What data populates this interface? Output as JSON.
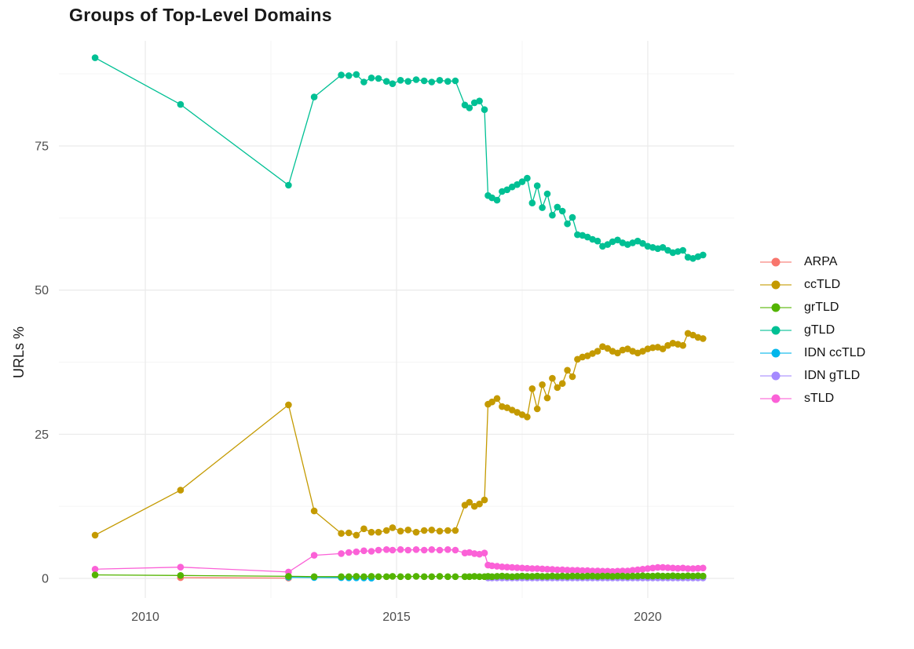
{
  "chart_data": {
    "type": "line",
    "title": "Groups of Top-Level Domains",
    "xlabel": "",
    "ylabel": "URLs %",
    "x_ticks": [
      "2010",
      "2015",
      "2020"
    ],
    "x_tick_years": [
      2010,
      2015,
      2020
    ],
    "x_minor_years": [
      2012.5,
      2017.5
    ],
    "y_ticks": [
      "0",
      "25",
      "50",
      "75"
    ],
    "y_tick_values": [
      0,
      25,
      50,
      75
    ],
    "y_minor_values": [
      12.5,
      37.5,
      62.5,
      87.5
    ],
    "xlim": [
      2008.28,
      2021.72
    ],
    "ylim": [
      -3.4,
      93.24
    ],
    "grid": true,
    "legend_position": "right",
    "grid_major_color": "#EBEBEB",
    "grid_minor_color": "#F5F5F5",
    "axis_text_color": "#4d4d4d",
    "draw_order": [
      0,
      4,
      5,
      6,
      1,
      3,
      2
    ],
    "series": [
      {
        "name": "ARPA",
        "color": "#F8766D",
        "x": [
          2010.7,
          2012.85
        ],
        "y": [
          0.12,
          0.06
        ]
      },
      {
        "name": "ccTLD",
        "color": "#C49A00",
        "x": [
          2009.0,
          2010.7,
          2012.85,
          2013.36,
          2013.9,
          2014.05,
          2014.2,
          2014.35,
          2014.5,
          2014.64,
          2014.8,
          2014.92,
          2015.08,
          2015.23,
          2015.39,
          2015.55,
          2015.7,
          2015.86,
          2016.02,
          2016.17,
          2016.36,
          2016.45,
          2016.55,
          2016.65,
          2016.75,
          2016.82,
          2016.9,
          2017.0,
          2017.1,
          2017.2,
          2017.3,
          2017.4,
          2017.5,
          2017.6,
          2017.7,
          2017.8,
          2017.9,
          2018.0,
          2018.1,
          2018.2,
          2018.3,
          2018.4,
          2018.5,
          2018.6,
          2018.7,
          2018.8,
          2018.9,
          2019.0,
          2019.1,
          2019.2,
          2019.3,
          2019.4,
          2019.5,
          2019.6,
          2019.7,
          2019.8,
          2019.9,
          2020.0,
          2020.1,
          2020.2,
          2020.3,
          2020.4,
          2020.5,
          2020.6,
          2020.7,
          2020.8,
          2020.9,
          2021.0,
          2021.1
        ],
        "y": [
          7.5,
          15.3,
          30.1,
          11.7,
          7.8,
          7.9,
          7.5,
          8.6,
          8.0,
          8.0,
          8.3,
          8.8,
          8.2,
          8.4,
          8.0,
          8.3,
          8.4,
          8.2,
          8.3,
          8.3,
          12.7,
          13.2,
          12.5,
          12.9,
          13.6,
          30.2,
          30.6,
          31.2,
          29.8,
          29.6,
          29.2,
          28.8,
          28.4,
          28.0,
          32.9,
          29.4,
          33.6,
          31.3,
          34.7,
          33.1,
          33.8,
          36.1,
          35.0,
          38.0,
          38.4,
          38.6,
          39.0,
          39.4,
          40.2,
          39.9,
          39.4,
          39.1,
          39.6,
          39.8,
          39.4,
          39.1,
          39.4,
          39.8,
          40.0,
          40.1,
          39.8,
          40.4,
          40.8,
          40.6,
          40.4,
          42.5,
          42.2,
          41.8,
          41.6
        ]
      },
      {
        "name": "grTLD",
        "color": "#53B400",
        "x": [
          2009.0,
          2010.7,
          2012.85,
          2013.36,
          2013.9,
          2014.05,
          2014.2,
          2014.35,
          2014.5,
          2014.64,
          2014.8,
          2014.92,
          2015.08,
          2015.23,
          2015.39,
          2015.55,
          2015.7,
          2015.86,
          2016.02,
          2016.17,
          2016.36,
          2016.45,
          2016.55,
          2016.65,
          2016.75,
          2016.82,
          2016.9,
          2017.0,
          2017.1,
          2017.2,
          2017.3,
          2017.4,
          2017.5,
          2017.6,
          2017.7,
          2017.8,
          2017.9,
          2018.0,
          2018.1,
          2018.2,
          2018.3,
          2018.4,
          2018.5,
          2018.6,
          2018.7,
          2018.8,
          2018.9,
          2019.0,
          2019.1,
          2019.2,
          2019.3,
          2019.4,
          2019.5,
          2019.6,
          2019.7,
          2019.8,
          2019.9,
          2020.0,
          2020.1,
          2020.2,
          2020.3,
          2020.4,
          2020.5,
          2020.6,
          2020.7,
          2020.8,
          2020.9,
          2021.0,
          2021.1
        ],
        "y": [
          0.6,
          0.5,
          0.35,
          0.3,
          0.3,
          0.3,
          0.35,
          0.3,
          0.35,
          0.3,
          0.3,
          0.35,
          0.3,
          0.3,
          0.35,
          0.3,
          0.3,
          0.35,
          0.3,
          0.3,
          0.3,
          0.3,
          0.35,
          0.3,
          0.3,
          0.35,
          0.3,
          0.35,
          0.4,
          0.35,
          0.3,
          0.35,
          0.4,
          0.35,
          0.35,
          0.4,
          0.35,
          0.35,
          0.4,
          0.35,
          0.4,
          0.35,
          0.4,
          0.4,
          0.35,
          0.4,
          0.4,
          0.35,
          0.4,
          0.4,
          0.35,
          0.4,
          0.4,
          0.35,
          0.4,
          0.4,
          0.45,
          0.4,
          0.4,
          0.45,
          0.4,
          0.4,
          0.45,
          0.4,
          0.4,
          0.45,
          0.4,
          0.45,
          0.4
        ]
      },
      {
        "name": "gTLD",
        "color": "#00C094",
        "x": [
          2009.0,
          2010.7,
          2012.85,
          2013.36,
          2013.9,
          2014.05,
          2014.2,
          2014.35,
          2014.5,
          2014.64,
          2014.8,
          2014.92,
          2015.08,
          2015.23,
          2015.39,
          2015.55,
          2015.7,
          2015.86,
          2016.02,
          2016.17,
          2016.36,
          2016.45,
          2016.55,
          2016.65,
          2016.75,
          2016.82,
          2016.9,
          2017.0,
          2017.1,
          2017.2,
          2017.3,
          2017.4,
          2017.5,
          2017.6,
          2017.7,
          2017.8,
          2017.9,
          2018.0,
          2018.1,
          2018.2,
          2018.3,
          2018.4,
          2018.5,
          2018.6,
          2018.7,
          2018.8,
          2018.9,
          2019.0,
          2019.1,
          2019.2,
          2019.3,
          2019.4,
          2019.5,
          2019.6,
          2019.7,
          2019.8,
          2019.9,
          2020.0,
          2020.1,
          2020.2,
          2020.3,
          2020.4,
          2020.5,
          2020.6,
          2020.7,
          2020.8,
          2020.9,
          2021.0,
          2021.1
        ],
        "y": [
          90.3,
          82.2,
          68.2,
          83.5,
          87.3,
          87.2,
          87.4,
          86.1,
          86.8,
          86.7,
          86.2,
          85.8,
          86.4,
          86.2,
          86.5,
          86.3,
          86.1,
          86.4,
          86.2,
          86.3,
          82.1,
          81.6,
          82.5,
          82.8,
          81.3,
          66.4,
          66.0,
          65.6,
          67.1,
          67.4,
          67.9,
          68.3,
          68.8,
          69.4,
          65.1,
          68.1,
          64.3,
          66.7,
          63.0,
          64.4,
          63.7,
          61.5,
          62.6,
          59.6,
          59.5,
          59.2,
          58.8,
          58.5,
          57.6,
          57.9,
          58.4,
          58.7,
          58.2,
          57.9,
          58.2,
          58.5,
          58.1,
          57.6,
          57.4,
          57.2,
          57.4,
          56.9,
          56.5,
          56.7,
          56.9,
          55.7,
          55.5,
          55.8,
          56.1
        ]
      },
      {
        "name": "IDN ccTLD",
        "color": "#00B6EB",
        "x": [
          2012.85,
          2013.36,
          2013.9,
          2014.05,
          2014.2,
          2014.35,
          2014.5
        ],
        "y": [
          0.2,
          0.15,
          0.12,
          0.1,
          0.1,
          0.08,
          0.05
        ]
      },
      {
        "name": "IDN gTLD",
        "color": "#A58AFF",
        "x": [
          2016.82,
          2016.9,
          2017.0,
          2017.1,
          2017.2,
          2017.3,
          2017.4,
          2017.5,
          2017.6,
          2017.7,
          2017.8,
          2017.9,
          2018.0,
          2018.1,
          2018.2,
          2018.3,
          2018.4,
          2018.5,
          2018.6,
          2018.7,
          2018.8,
          2018.9,
          2019.0,
          2019.1,
          2019.2,
          2019.3,
          2019.4,
          2019.5,
          2019.6,
          2019.7,
          2019.8,
          2019.9,
          2020.0,
          2020.1,
          2020.2,
          2020.3,
          2020.4,
          2020.5,
          2020.6,
          2020.7,
          2020.8,
          2020.9,
          2021.0,
          2021.1
        ],
        "y": [
          0.08,
          0.08,
          0.08,
          0.08,
          0.08,
          0.08,
          0.08,
          0.08,
          0.08,
          0.08,
          0.08,
          0.08,
          0.08,
          0.08,
          0.08,
          0.08,
          0.08,
          0.08,
          0.08,
          0.08,
          0.08,
          0.08,
          0.08,
          0.08,
          0.08,
          0.08,
          0.08,
          0.08,
          0.08,
          0.08,
          0.08,
          0.08,
          0.08,
          0.08,
          0.08,
          0.08,
          0.08,
          0.08,
          0.08,
          0.08,
          0.08,
          0.08,
          0.08,
          0.08
        ]
      },
      {
        "name": "sTLD",
        "color": "#FB61D7",
        "x": [
          2009.0,
          2010.7,
          2012.85,
          2013.36,
          2013.9,
          2014.05,
          2014.2,
          2014.35,
          2014.5,
          2014.64,
          2014.8,
          2014.92,
          2015.08,
          2015.23,
          2015.39,
          2015.55,
          2015.7,
          2015.86,
          2016.02,
          2016.17,
          2016.36,
          2016.45,
          2016.55,
          2016.65,
          2016.75,
          2016.82,
          2016.9,
          2017.0,
          2017.1,
          2017.2,
          2017.3,
          2017.4,
          2017.5,
          2017.6,
          2017.7,
          2017.8,
          2017.9,
          2018.0,
          2018.1,
          2018.2,
          2018.3,
          2018.4,
          2018.5,
          2018.6,
          2018.7,
          2018.8,
          2018.9,
          2019.0,
          2019.1,
          2019.2,
          2019.3,
          2019.4,
          2019.5,
          2019.6,
          2019.7,
          2019.8,
          2019.9,
          2020.0,
          2020.1,
          2020.2,
          2020.3,
          2020.4,
          2020.5,
          2020.6,
          2020.7,
          2020.8,
          2020.9,
          2021.0,
          2021.1
        ],
        "y": [
          1.6,
          1.95,
          1.1,
          4.0,
          4.3,
          4.5,
          4.6,
          4.8,
          4.7,
          4.9,
          5.0,
          4.9,
          5.0,
          4.9,
          5.0,
          4.9,
          5.0,
          4.9,
          5.0,
          4.9,
          4.4,
          4.5,
          4.3,
          4.2,
          4.4,
          2.3,
          2.2,
          2.1,
          2.0,
          1.95,
          1.9,
          1.85,
          1.8,
          1.75,
          1.7,
          1.7,
          1.65,
          1.6,
          1.55,
          1.5,
          1.5,
          1.45,
          1.4,
          1.4,
          1.35,
          1.35,
          1.3,
          1.3,
          1.25,
          1.25,
          1.2,
          1.25,
          1.3,
          1.3,
          1.4,
          1.5,
          1.6,
          1.7,
          1.8,
          1.9,
          1.9,
          1.85,
          1.8,
          1.75,
          1.8,
          1.7,
          1.7,
          1.75,
          1.8
        ]
      }
    ]
  }
}
